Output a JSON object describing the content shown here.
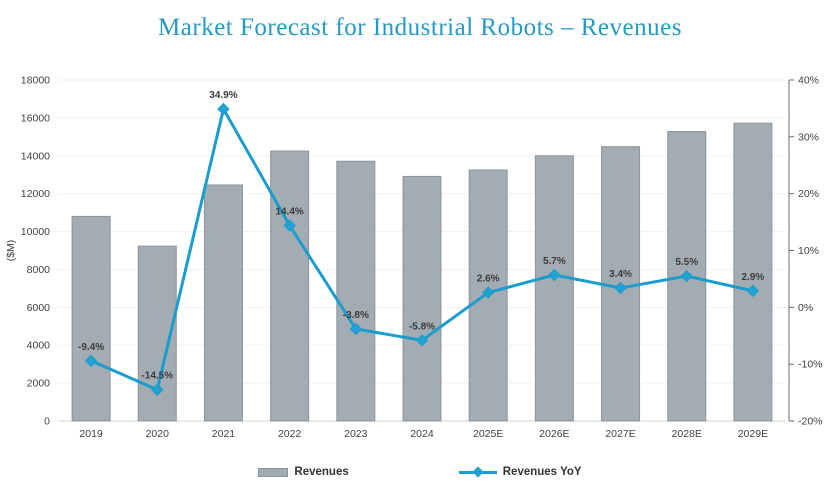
{
  "chart_data": {
    "type": "combo",
    "title": "Market Forecast for Industrial Robots – Revenues",
    "categories": [
      "2019",
      "2020",
      "2021",
      "2022",
      "2023",
      "2024",
      "2025E",
      "2026E",
      "2027E",
      "2028E",
      "2029E"
    ],
    "series": [
      {
        "name": "Revenues",
        "type": "bar",
        "axis": "left",
        "values": [
          10800,
          9230,
          12460,
          14250,
          13710,
          12910,
          13250,
          14000,
          14480,
          15280,
          15720
        ]
      },
      {
        "name": "Revenues YoY",
        "type": "line",
        "axis": "right",
        "values": [
          -9.4,
          -14.5,
          34.9,
          14.4,
          -3.8,
          -5.8,
          2.6,
          5.7,
          3.4,
          5.5,
          2.9
        ],
        "data_labels": [
          "-9.4%",
          "-14.5%",
          "34.9%",
          "14.4%",
          "-3.8%",
          "-5.8%",
          "2.6%",
          "5.7%",
          "3.4%",
          "5.5%",
          "2.9%"
        ]
      }
    ],
    "left_axis": {
      "label": "($M)",
      "min": 0,
      "max": 18000,
      "step": 2000
    },
    "right_axis": {
      "min": -20,
      "max": 40,
      "step": 10,
      "suffix": "%"
    },
    "grid": true,
    "legend_position": "bottom",
    "colors": {
      "title": "#2499c7",
      "bar_fill": "#a3acb3",
      "bar_stroke": "#8b949b",
      "line": "#1b9cce",
      "marker": "#22a2d2",
      "gridline": "#f1f1f1",
      "zero_line": "#d6d6d6",
      "axis_line": "#6b6b6b",
      "tick_text": "#404040",
      "data_label_text": "#3b3b3b"
    }
  }
}
